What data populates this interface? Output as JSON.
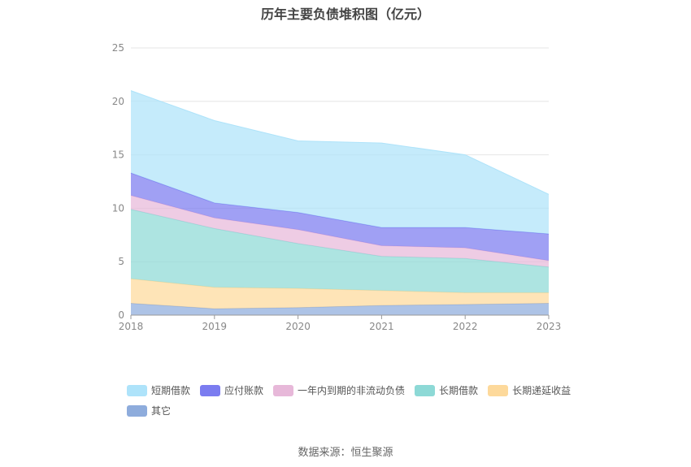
{
  "title": "历年主要负债堆积图（亿元）",
  "source": "数据来源：恒生聚源",
  "chart_data": {
    "type": "area",
    "stacked": true,
    "title": "历年主要负债堆积图（亿元）",
    "x": [
      "2018",
      "2019",
      "2020",
      "2021",
      "2022",
      "2023"
    ],
    "ylim": [
      0,
      25
    ],
    "yticks": [
      0,
      5,
      10,
      15,
      20,
      25
    ],
    "grid": true,
    "legend_position": "bottom",
    "series": [
      {
        "name": "其它",
        "color": "#8eacdc",
        "values": [
          1.1,
          0.6,
          0.7,
          0.9,
          1.0,
          1.1
        ]
      },
      {
        "name": "长期递延收益",
        "color": "#fdd99b",
        "values": [
          2.3,
          2.0,
          1.8,
          1.4,
          1.1,
          1.0
        ]
      },
      {
        "name": "长期借款",
        "color": "#8dd9d6",
        "values": [
          6.5,
          5.5,
          4.2,
          3.2,
          3.2,
          2.4
        ]
      },
      {
        "name": "一年内到期的非流动负债",
        "color": "#e7b8d9",
        "values": [
          1.3,
          1.0,
          1.3,
          1.0,
          1.0,
          0.6
        ]
      },
      {
        "name": "应付账款",
        "color": "#7b7cf0",
        "values": [
          2.1,
          1.4,
          1.6,
          1.7,
          1.9,
          2.5
        ]
      },
      {
        "name": "短期借款",
        "color": "#aee3fa",
        "values": [
          7.7,
          7.7,
          6.7,
          7.9,
          6.8,
          3.7
        ]
      }
    ],
    "legend_order": [
      "短期借款",
      "应付账款",
      "一年内到期的非流动负债",
      "长期借款",
      "长期递延收益",
      "其它"
    ]
  }
}
